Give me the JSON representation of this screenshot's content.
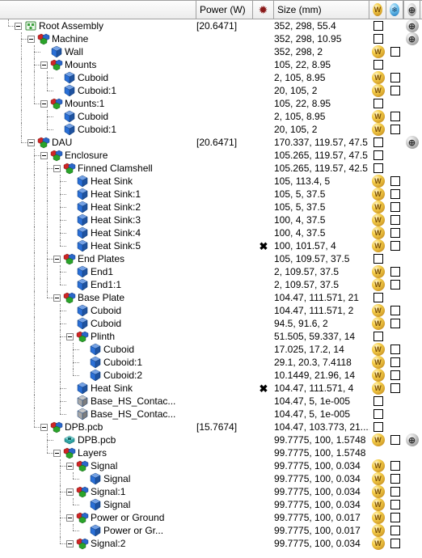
{
  "columns": {
    "power": "Power (W)",
    "size": "Size (mm)"
  },
  "icons": {
    "assembly_root": {
      "type": "assy",
      "color": "#3da23d"
    },
    "assembly": {
      "type": "assy",
      "color": "#3da23d"
    },
    "assembly_comp": {
      "type": "cassy",
      "colors": [
        "#d02525",
        "#2a67c9",
        "#2aa32a"
      ]
    },
    "cube": {
      "type": "cube",
      "color": "#2a6fd6"
    },
    "cubegrey": {
      "type": "cube",
      "color": "#a8a8a8"
    },
    "pcb": {
      "type": "pcb",
      "color": "#2fa3a3"
    },
    "layers": {
      "type": "layers",
      "colors": [
        "#d02525",
        "#2a67c9",
        "#2aa32a"
      ]
    }
  },
  "rows": [
    {
      "id": "root",
      "depth": 0,
      "exp": "e",
      "icon": "assembly_root",
      "label": "Root Assembly",
      "power": "[20.6471]",
      "size": "352, 298, 55.4",
      "w": "chk",
      "b": "",
      "g": "grey"
    },
    {
      "id": "mach",
      "depth": 1,
      "exp": "e",
      "icon": "assembly_comp",
      "label": "Machine",
      "power": "",
      "size": "352, 298, 10.95",
      "w": "chk",
      "b": "",
      "g": "grey"
    },
    {
      "id": "wall",
      "depth": 2,
      "exp": "n",
      "icon": "cube",
      "label": "Wall",
      "power": "",
      "size": "352, 298, 2",
      "w": "gold",
      "b": "chk",
      "g": ""
    },
    {
      "id": "mnt",
      "depth": 2,
      "exp": "e",
      "icon": "assembly_comp",
      "label": "Mounts",
      "power": "",
      "size": "105, 22, 8.95",
      "w": "chk",
      "b": "",
      "g": ""
    },
    {
      "id": "mnt_c",
      "depth": 3,
      "exp": "n",
      "icon": "cube",
      "label": "Cuboid",
      "power": "",
      "size": "2, 105, 8.95",
      "w": "gold",
      "b": "chk",
      "g": ""
    },
    {
      "id": "mnt_c1",
      "depth": 3,
      "exp": "n",
      "icon": "cube",
      "label": "Cuboid:1",
      "power": "",
      "size": "20, 105, 2",
      "w": "gold",
      "b": "chk",
      "g": ""
    },
    {
      "id": "mnt1",
      "depth": 2,
      "exp": "e",
      "icon": "assembly_comp",
      "label": "Mounts:1",
      "power": "",
      "size": "105, 22, 8.95",
      "w": "chk",
      "b": "",
      "g": ""
    },
    {
      "id": "mnt1_c",
      "depth": 3,
      "exp": "n",
      "icon": "cube",
      "label": "Cuboid",
      "power": "",
      "size": "2, 105, 8.95",
      "w": "gold",
      "b": "chk",
      "g": ""
    },
    {
      "id": "mnt1_c1",
      "depth": 3,
      "exp": "n",
      "icon": "cube",
      "label": "Cuboid:1",
      "power": "",
      "size": "20, 105, 2",
      "w": "gold",
      "b": "chk",
      "g": ""
    },
    {
      "id": "dau",
      "depth": 1,
      "exp": "e",
      "icon": "assembly_comp",
      "label": "DAU",
      "power": "[20.6471]",
      "size": "170.337, 119.57, 47.5",
      "w": "chk",
      "b": "",
      "g": "grey"
    },
    {
      "id": "enc",
      "depth": 2,
      "exp": "e",
      "icon": "assembly_comp",
      "label": "Enclosure",
      "power": "",
      "size": "105.265, 119.57, 47.5",
      "w": "chk",
      "b": "",
      "g": ""
    },
    {
      "id": "fc",
      "depth": 3,
      "exp": "e",
      "icon": "assembly_comp",
      "label": "Finned Clamshell",
      "power": "",
      "size": "105.265, 119.57, 42.5",
      "w": "chk",
      "b": "",
      "g": ""
    },
    {
      "id": "hs0",
      "depth": 4,
      "exp": "n",
      "icon": "cube",
      "label": "Heat Sink",
      "power": "",
      "size": "105, 113.4, 5",
      "w": "gold",
      "b": "chk",
      "g": ""
    },
    {
      "id": "hs1",
      "depth": 4,
      "exp": "n",
      "icon": "cube",
      "label": "Heat Sink:1",
      "power": "",
      "size": "105, 5, 37.5",
      "w": "gold",
      "b": "chk",
      "g": ""
    },
    {
      "id": "hs2",
      "depth": 4,
      "exp": "n",
      "icon": "cube",
      "label": "Heat Sink:2",
      "power": "",
      "size": "105, 5, 37.5",
      "w": "gold",
      "b": "chk",
      "g": ""
    },
    {
      "id": "hs3",
      "depth": 4,
      "exp": "n",
      "icon": "cube",
      "label": "Heat Sink:3",
      "power": "",
      "size": "100, 4, 37.5",
      "w": "gold",
      "b": "chk",
      "g": ""
    },
    {
      "id": "hs4",
      "depth": 4,
      "exp": "n",
      "icon": "cube",
      "label": "Heat Sink:4",
      "power": "",
      "size": "100, 4, 37.5",
      "w": "gold",
      "b": "chk",
      "g": ""
    },
    {
      "id": "hs5",
      "depth": 4,
      "exp": "n",
      "icon": "cube",
      "label": "Heat Sink:5",
      "power": "",
      "x": true,
      "size": "100, 101.57, 4",
      "w": "gold",
      "b": "chk",
      "g": ""
    },
    {
      "id": "ep",
      "depth": 3,
      "exp": "e",
      "icon": "assembly_comp",
      "label": "End Plates",
      "power": "",
      "size": "105, 109.57, 37.5",
      "w": "chk",
      "b": "",
      "g": ""
    },
    {
      "id": "e1",
      "depth": 4,
      "exp": "n",
      "icon": "cube",
      "label": "End1",
      "power": "",
      "size": "2, 109.57, 37.5",
      "w": "gold",
      "b": "chk",
      "g": ""
    },
    {
      "id": "e11",
      "depth": 4,
      "exp": "n",
      "icon": "cube",
      "label": "End1:1",
      "power": "",
      "size": "2, 109.57, 37.5",
      "w": "gold",
      "b": "chk",
      "g": ""
    },
    {
      "id": "bp",
      "depth": 3,
      "exp": "e",
      "icon": "assembly_comp",
      "label": "Base Plate",
      "power": "",
      "size": "104.47, 111.571, 21",
      "w": "chk",
      "b": "",
      "g": ""
    },
    {
      "id": "bp_c",
      "depth": 4,
      "exp": "n",
      "icon": "cube",
      "label": "Cuboid",
      "power": "",
      "size": "104.47, 111.571, 2",
      "w": "gold",
      "b": "chk",
      "g": ""
    },
    {
      "id": "bp_c2",
      "depth": 4,
      "exp": "n",
      "icon": "cube",
      "label": "Cuboid",
      "power": "",
      "size": "94.5, 91.6, 2",
      "w": "gold",
      "b": "chk",
      "g": ""
    },
    {
      "id": "pl",
      "depth": 4,
      "exp": "e",
      "icon": "assembly_comp",
      "label": "Plinth",
      "power": "",
      "size": "51.505, 59.337, 14",
      "w": "chk",
      "b": "",
      "g": ""
    },
    {
      "id": "pl_c",
      "depth": 5,
      "exp": "n",
      "icon": "cube",
      "label": "Cuboid",
      "power": "",
      "size": "17.025, 17.2, 14",
      "w": "gold",
      "b": "chk",
      "g": ""
    },
    {
      "id": "pl_c1",
      "depth": 5,
      "exp": "n",
      "icon": "cube",
      "label": "Cuboid:1",
      "power": "",
      "size": "29.1, 20.3, 7.4118",
      "w": "gold",
      "b": "chk",
      "g": ""
    },
    {
      "id": "pl_c2",
      "depth": 5,
      "exp": "n",
      "icon": "cube",
      "label": "Cuboid:2",
      "power": "",
      "size": "10.1449, 21.96, 14",
      "w": "gold",
      "b": "chk",
      "g": ""
    },
    {
      "id": "bp_hs",
      "depth": 4,
      "exp": "n",
      "icon": "cube",
      "label": "Heat Sink",
      "power": "",
      "x": true,
      "size": "104.47, 111.571, 4",
      "w": "gold",
      "b": "chk",
      "g": ""
    },
    {
      "id": "bhc1",
      "depth": 4,
      "exp": "n",
      "icon": "cubegrey",
      "label": "Base_HS_Contac...",
      "power": "",
      "size": "104.47, 5, 1e-005",
      "w": "chk",
      "b": "",
      "g": ""
    },
    {
      "id": "bhc2",
      "depth": 4,
      "exp": "n",
      "icon": "cubegrey",
      "label": "Base_HS_Contac...",
      "power": "",
      "size": "104.47, 5, 1e-005",
      "w": "chk",
      "b": "",
      "g": ""
    },
    {
      "id": "dpb",
      "depth": 2,
      "exp": "e",
      "icon": "assembly_comp",
      "label": "DPB.pcb",
      "power": "[15.7674]",
      "size": "104.47, 103.773, 21....",
      "w": "chk",
      "b": "",
      "g": ""
    },
    {
      "id": "dpb2",
      "depth": 3,
      "exp": "n",
      "icon": "pcb",
      "label": "DPB.pcb",
      "power": "",
      "size": "99.7775, 100, 1.5748",
      "w": "gold",
      "b": "chk",
      "g": "grey"
    },
    {
      "id": "lay",
      "depth": 3,
      "exp": "e",
      "icon": "layers",
      "label": "Layers",
      "power": "",
      "size": "99.7775, 100, 1.5748",
      "w": "",
      "b": "",
      "g": ""
    },
    {
      "id": "sig",
      "depth": 4,
      "exp": "e",
      "icon": "assembly_comp",
      "label": "Signal",
      "power": "",
      "size": "99.7775, 100, 0.034",
      "w": "gold",
      "b": "chk",
      "g": ""
    },
    {
      "id": "sigc",
      "depth": 5,
      "exp": "n",
      "icon": "cube",
      "label": "Signal",
      "power": "",
      "size": "99.7775, 100, 0.034",
      "w": "gold",
      "b": "chk",
      "g": ""
    },
    {
      "id": "sig1",
      "depth": 4,
      "exp": "e",
      "icon": "assembly_comp",
      "label": "Signal:1",
      "power": "",
      "size": "99.7775, 100, 0.034",
      "w": "gold",
      "b": "chk",
      "g": ""
    },
    {
      "id": "sig1c",
      "depth": 5,
      "exp": "n",
      "icon": "cube",
      "label": "Signal",
      "power": "",
      "size": "99.7775, 100, 0.034",
      "w": "gold",
      "b": "chk",
      "g": ""
    },
    {
      "id": "pog",
      "depth": 4,
      "exp": "e",
      "icon": "assembly_comp",
      "label": "Power or Ground",
      "power": "",
      "size": "99.7775, 100, 0.017",
      "w": "gold",
      "b": "chk",
      "g": ""
    },
    {
      "id": "pogc",
      "depth": 5,
      "exp": "n",
      "icon": "cube",
      "label": "Power or Gr...",
      "power": "",
      "size": "99.7775, 100, 0.017",
      "w": "gold",
      "b": "chk",
      "g": ""
    },
    {
      "id": "sig2",
      "depth": 4,
      "exp": "e",
      "icon": "assembly_comp",
      "label": "Signal:2",
      "power": "",
      "size": "99.7775, 100, 0.034",
      "w": "gold",
      "b": "chk",
      "g": ""
    }
  ]
}
